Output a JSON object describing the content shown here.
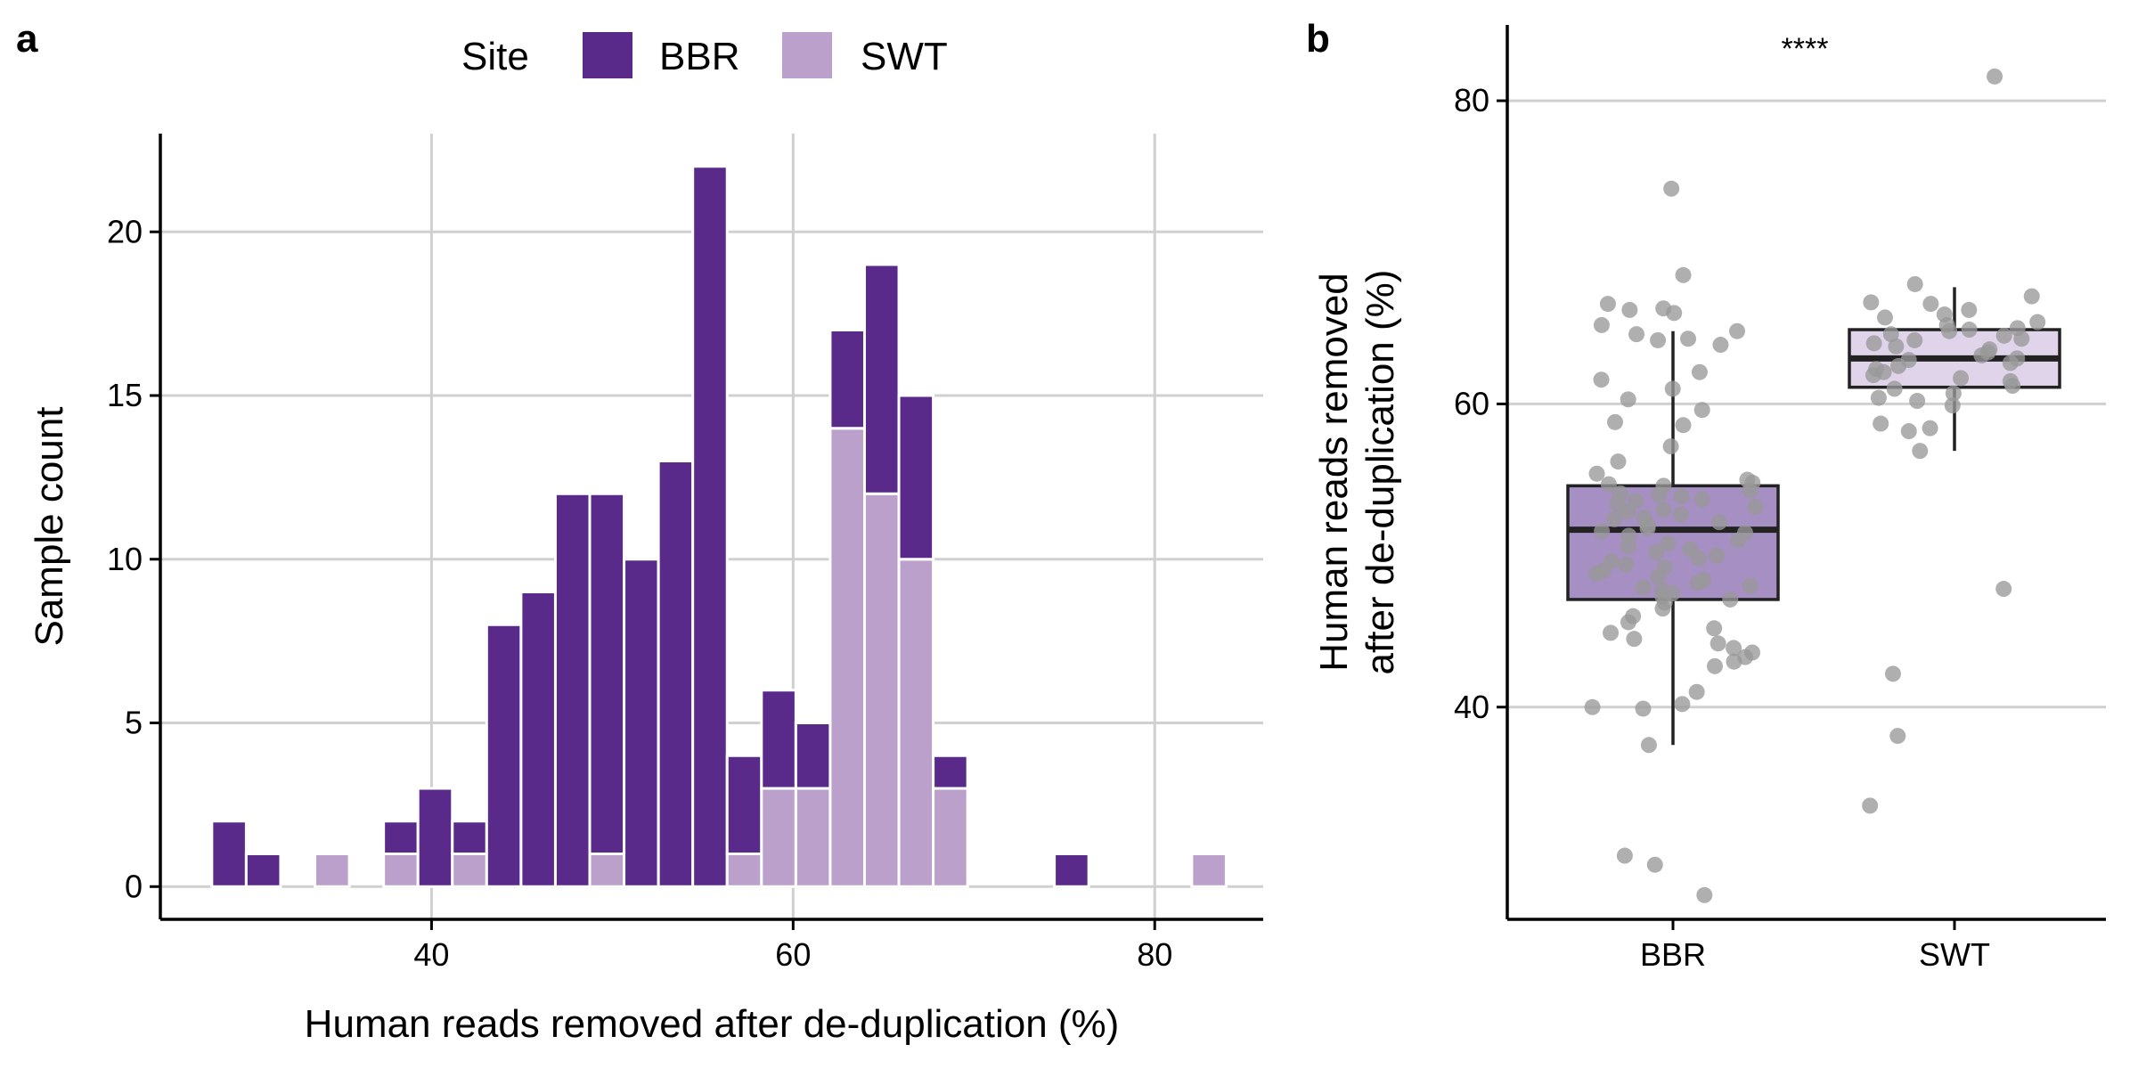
{
  "panel_labels": {
    "a": "a",
    "b": "b"
  },
  "colors": {
    "BBR": "#592a8a",
    "SWT": "#bca0cc",
    "box_BBR": "#a58fc3",
    "box_SWT": "#e0d4ea",
    "points": "#999999",
    "grid": "#d0d0d0"
  },
  "chart_data": [
    {
      "type": "bar",
      "stacked": true,
      "legend": {
        "title": "Site",
        "position": "top",
        "entries": [
          "BBR",
          "SWT"
        ]
      },
      "xlabel": "Human reads removed after de-duplication (%)",
      "ylabel": "Sample count",
      "xlim": [
        25,
        86
      ],
      "ylim": [
        -1,
        23
      ],
      "xticks": [
        40,
        60,
        80
      ],
      "yticks": [
        0,
        5,
        10,
        15,
        20
      ],
      "bin_width": 1.9,
      "grid": true,
      "x": [
        28.8,
        30.7,
        34.5,
        38.3,
        40.2,
        42.1,
        44.0,
        45.9,
        47.8,
        49.7,
        51.6,
        53.5,
        55.4,
        57.3,
        59.2,
        61.1,
        63.0,
        64.9,
        66.8,
        68.7,
        75.4,
        83.0
      ],
      "series": [
        {
          "name": "SWT",
          "values": [
            0,
            0,
            1,
            1,
            0,
            1,
            0,
            0,
            0,
            1,
            0,
            0,
            0,
            1,
            3,
            3,
            14,
            12,
            10,
            3,
            0,
            1
          ]
        },
        {
          "name": "BBR",
          "values": [
            2,
            1,
            0,
            1,
            3,
            1,
            8,
            9,
            12,
            11,
            10,
            13,
            22,
            3,
            3,
            2,
            3,
            7,
            5,
            1,
            1,
            0
          ]
        }
      ]
    },
    {
      "type": "box",
      "xlabel": "",
      "ylabel": "Human reads removed after de-duplication (%)",
      "categories": [
        "BBR",
        "SWT"
      ],
      "ylim": [
        26,
        85
      ],
      "yticks": [
        40,
        60,
        80
      ],
      "grid": true,
      "annotation": "****",
      "boxes": [
        {
          "name": "BBR",
          "min": 37.5,
          "q1": 47.1,
          "median": 51.7,
          "q3": 54.6,
          "max": 64.8
        },
        {
          "name": "SWT",
          "min": 56.9,
          "q1": 61.1,
          "median": 63.0,
          "q3": 64.9,
          "max": 67.7
        }
      ],
      "points": [
        {
          "name": "BBR",
          "values": [
            74.2,
            68.5,
            66.6,
            66.2,
            66.3,
            66.0,
            65.2,
            64.8,
            64.3,
            64.2,
            64.6,
            63.9,
            62.1,
            61.6,
            61.0,
            60.3,
            59.6,
            58.8,
            58.6,
            57.2,
            56.2,
            55.4,
            55.0,
            54.8,
            54.7,
            54.6,
            54.3,
            54.1,
            54.0,
            53.9,
            53.7,
            53.6,
            53.4,
            53.2,
            53.0,
            52.9,
            52.7,
            52.5,
            52.4,
            52.2,
            52.0,
            51.8,
            51.6,
            51.5,
            51.3,
            51.0,
            50.8,
            50.6,
            50.4,
            50.2,
            50.0,
            49.8,
            49.6,
            49.4,
            49.2,
            49.0,
            48.8,
            48.6,
            48.4,
            48.2,
            48.0,
            47.9,
            47.7,
            47.5,
            47.3,
            47.1,
            46.9,
            46.5,
            46.0,
            45.6,
            45.2,
            44.9,
            44.5,
            44.2,
            43.9,
            43.6,
            43.3,
            43.0,
            42.7,
            41.0,
            40.2,
            40.0,
            39.9,
            37.5,
            30.2,
            29.6,
            27.6
          ]
        },
        {
          "name": "SWT",
          "values": [
            81.6,
            67.9,
            67.1,
            66.7,
            66.6,
            66.2,
            65.9,
            65.7,
            65.4,
            65.2,
            65.0,
            64.9,
            64.8,
            64.6,
            64.5,
            64.3,
            64.2,
            64.0,
            63.8,
            63.6,
            63.4,
            63.2,
            63.0,
            62.9,
            62.7,
            62.5,
            62.3,
            62.1,
            61.9,
            61.7,
            61.5,
            61.2,
            61.0,
            60.7,
            60.4,
            60.2,
            59.9,
            58.7,
            58.4,
            58.2,
            56.9,
            47.8,
            42.2,
            38.1,
            33.5
          ]
        }
      ]
    }
  ]
}
